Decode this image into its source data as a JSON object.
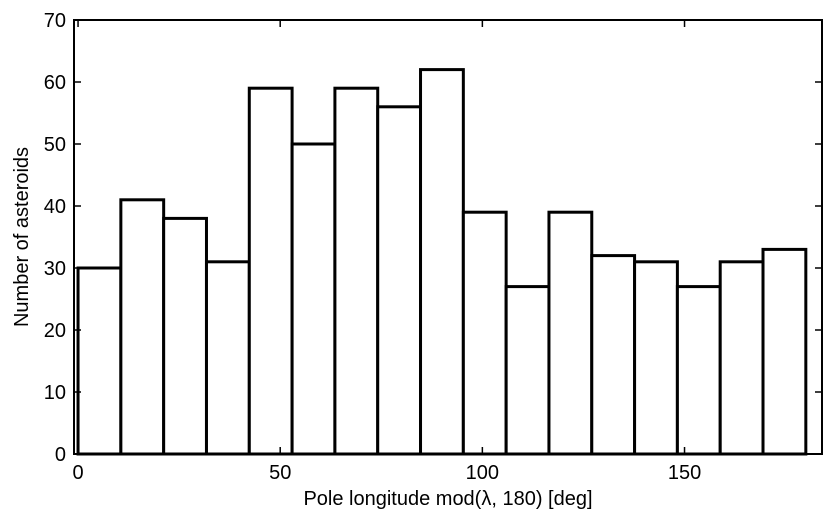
{
  "chart_data": {
    "type": "bar",
    "title": "",
    "xlabel": "Pole longitude mod(λ, 180) [deg]",
    "ylabel": "Number of asteroids",
    "xlim": [
      -1,
      184
    ],
    "ylim": [
      0,
      70
    ],
    "xticks": [
      0,
      50,
      100,
      150
    ],
    "yticks": [
      0,
      10,
      20,
      30,
      40,
      50,
      60,
      70
    ],
    "bin_width": 10.5882,
    "bin_start": 0,
    "values": [
      30,
      41,
      38,
      31,
      59,
      50,
      59,
      56,
      62,
      39,
      27,
      39,
      32,
      31,
      27,
      31,
      33
    ],
    "grid": false,
    "legend": "none",
    "bar_fill": "#ffffff",
    "bar_edge": "#000000"
  }
}
